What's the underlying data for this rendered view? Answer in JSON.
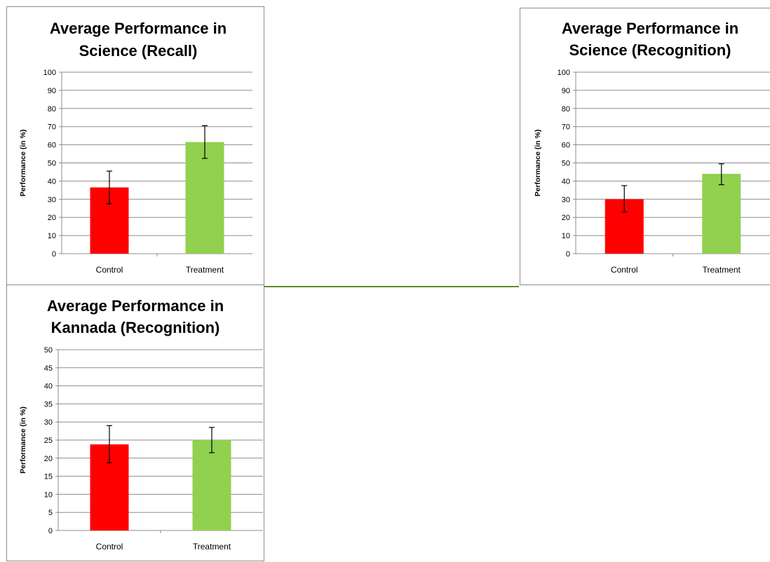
{
  "charts": [
    {
      "chart_data": {
        "type": "bar",
        "title": [
          "Average Performance in",
          "Science (Recall)"
        ],
        "xlabel": "",
        "ylabel": "Performance (in %)",
        "ylim": [
          0,
          100
        ],
        "yticks": [
          "0",
          "10",
          "20",
          "30",
          "40",
          "50",
          "60",
          "70",
          "80",
          "90",
          "100"
        ],
        "categories": [
          "Control",
          "Treatment"
        ],
        "values": [
          36.5,
          61.5
        ],
        "error": [
          [
            27.5,
            45.5
          ],
          [
            52.5,
            70.5
          ]
        ],
        "colors": [
          "#ff0000",
          "#92d050"
        ],
        "grid": true,
        "legend": "none"
      }
    },
    {
      "chart_data": {
        "type": "bar",
        "title": [
          "Average Performance in",
          "Science (Recognition)"
        ],
        "xlabel": "",
        "ylabel": "Performance (in %)",
        "ylim": [
          0,
          100
        ],
        "yticks": [
          "0",
          "10",
          "20",
          "30",
          "40",
          "50",
          "60",
          "70",
          "80",
          "90",
          "100"
        ],
        "categories": [
          "Control",
          "Treatment"
        ],
        "values": [
          30,
          44
        ],
        "error": [
          [
            23,
            37.5
          ],
          [
            38,
            49.5
          ]
        ],
        "colors": [
          "#ff0000",
          "#92d050"
        ],
        "grid": true,
        "legend": "none"
      }
    },
    {
      "chart_data": {
        "type": "bar",
        "title": [
          "Average Performance in",
          "Kannada (Recognition)"
        ],
        "xlabel": "",
        "ylabel": "Performance (in %)",
        "ylim": [
          0,
          50
        ],
        "yticks": [
          "0",
          "5",
          "10",
          "15",
          "20",
          "25",
          "30",
          "35",
          "40",
          "45",
          "50"
        ],
        "categories": [
          "Control",
          "Treatment"
        ],
        "values": [
          23.8,
          25
        ],
        "error": [
          [
            18.7,
            29
          ],
          [
            21.5,
            28.5
          ]
        ],
        "colors": [
          "#ff0000",
          "#92d050"
        ],
        "grid": true,
        "legend": "none"
      }
    }
  ]
}
